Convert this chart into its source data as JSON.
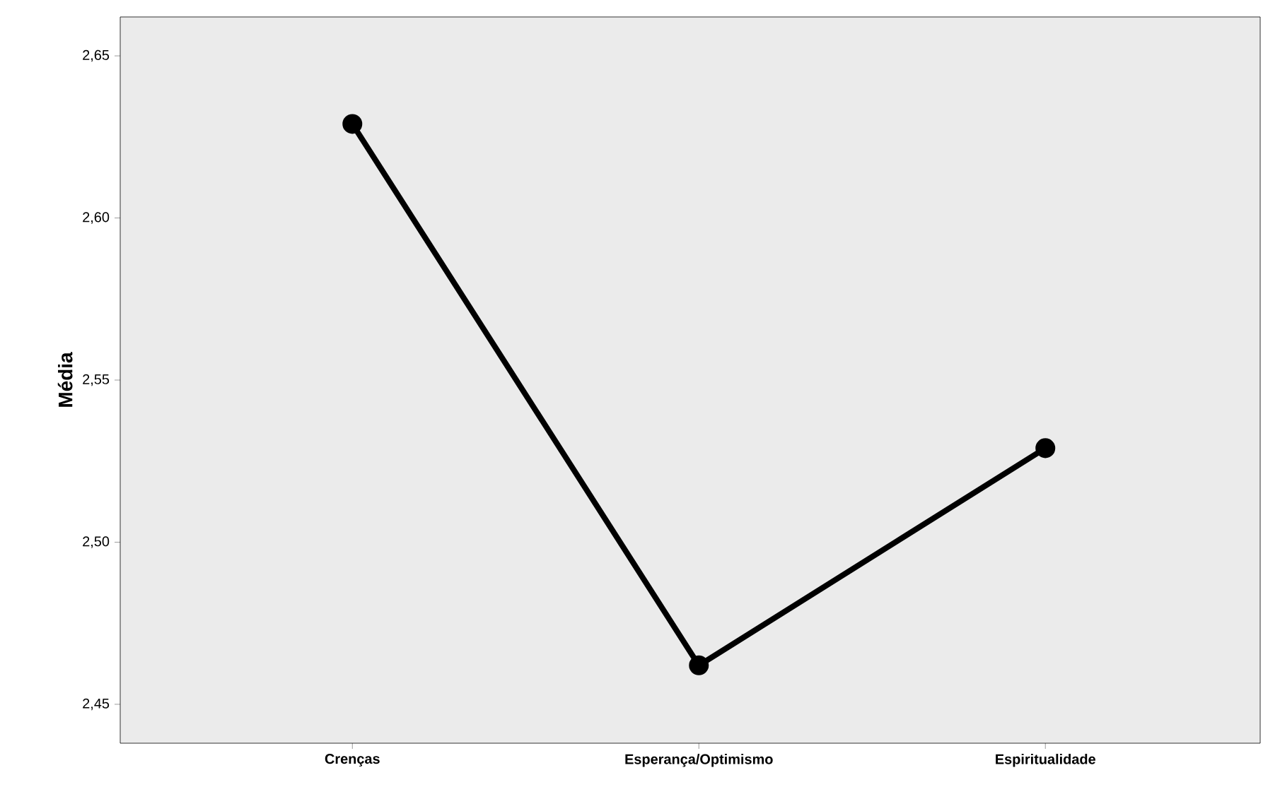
{
  "chart_data": {
    "type": "line",
    "ylabel": "Média",
    "categories": [
      "Crenças",
      "Esperança/Optimismo",
      "Espiritualidade"
    ],
    "values": [
      2.629,
      2.462,
      2.529
    ],
    "color": "#000000",
    "ylim": [
      2.438,
      2.662
    ],
    "yticks": [
      {
        "value": 2.45,
        "label": "2,45"
      },
      {
        "value": 2.5,
        "label": "2,50"
      },
      {
        "value": 2.55,
        "label": "2,55"
      },
      {
        "value": 2.6,
        "label": "2,60"
      },
      {
        "value": 2.65,
        "label": "2,65"
      }
    ],
    "marker": "circle",
    "line_style": "solid",
    "grid": false
  }
}
